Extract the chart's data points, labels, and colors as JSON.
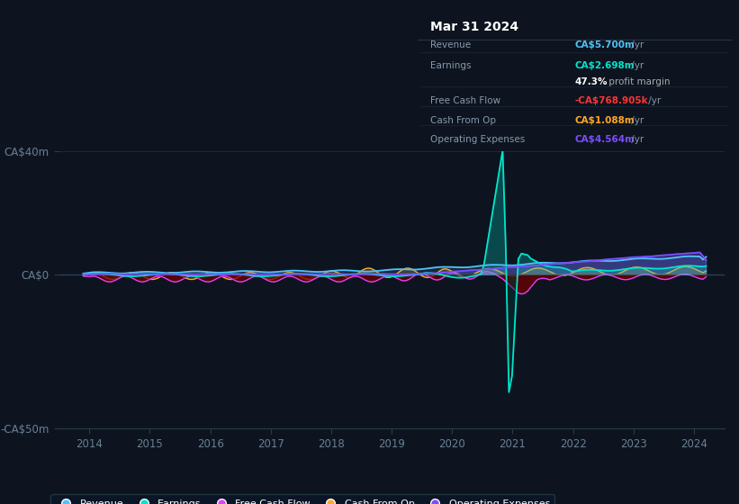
{
  "background_color": "#0d1420",
  "plot_bg_color": "#0d1420",
  "ylim": [
    -50,
    40
  ],
  "xlim": [
    2013.5,
    2024.5
  ],
  "yticks": [
    -50,
    0,
    40
  ],
  "ytick_labels": [
    "-CA$50m",
    "CA$0",
    "CA$40m"
  ],
  "xticks": [
    2014,
    2015,
    2016,
    2017,
    2018,
    2019,
    2020,
    2021,
    2022,
    2023,
    2024
  ],
  "grid_color": "#1e2d3d",
  "axis_color": "#2a3a4a",
  "tick_color": "#6a7f93",
  "revenue_color": "#4fc3f7",
  "earnings_color": "#00e5cc",
  "fcf_color": "#e040fb",
  "cashop_color": "#ffa726",
  "opex_color": "#7c4dff",
  "legend": [
    {
      "label": "Revenue",
      "color": "#4fc3f7"
    },
    {
      "label": "Earnings",
      "color": "#00e5cc"
    },
    {
      "label": "Free Cash Flow",
      "color": "#e040fb"
    },
    {
      "label": "Cash From Op",
      "color": "#ffa726"
    },
    {
      "label": "Operating Expenses",
      "color": "#7c4dff"
    }
  ],
  "info_box": {
    "title": "Mar 31 2024",
    "title_color": "#ffffff",
    "bg_color": "#0a1628",
    "border_color": "#2a3a4a",
    "label_color": "#8899aa",
    "rows": [
      {
        "label": "Revenue",
        "amount": "CA$5.700m",
        "suffix": " /yr",
        "amount_color": "#4fc3f7"
      },
      {
        "label": "Earnings",
        "amount": "CA$2.698m",
        "suffix": " /yr",
        "amount_color": "#00e5cc"
      },
      {
        "label": "",
        "amount": "47.3%",
        "suffix": " profit margin",
        "amount_color": "#ffffff",
        "suffix_color": "#aaaaaa"
      },
      {
        "label": "Free Cash Flow",
        "amount": "-CA$768.905k",
        "suffix": " /yr",
        "amount_color": "#ff3333"
      },
      {
        "label": "Cash From Op",
        "amount": "CA$1.088m",
        "suffix": " /yr",
        "amount_color": "#ffa726"
      },
      {
        "label": "Operating Expenses",
        "amount": "CA$4.564m",
        "suffix": " /yr",
        "amount_color": "#7c4dff"
      }
    ]
  }
}
